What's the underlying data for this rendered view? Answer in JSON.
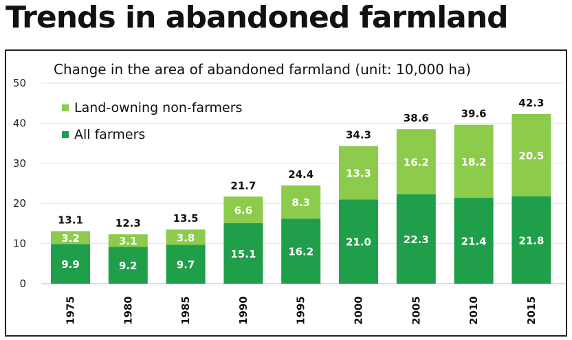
{
  "heading": "Trends in abandoned farmland",
  "chart_data": {
    "type": "bar",
    "stacked": true,
    "title": "Change in the area of abandoned farmland (unit: 10,000 ha)",
    "categories": [
      "1975",
      "1980",
      "1985",
      "1990",
      "1995",
      "2000",
      "2005",
      "2010",
      "2015"
    ],
    "series": [
      {
        "name": "All farmers",
        "values": [
          9.9,
          9.2,
          9.7,
          15.1,
          16.2,
          21.0,
          22.3,
          21.4,
          21.8
        ],
        "color": "#1f9f4a"
      },
      {
        "name": "Land-owning non-farmers",
        "values": [
          3.2,
          3.1,
          3.8,
          6.6,
          8.3,
          13.3,
          16.2,
          18.2,
          20.5
        ],
        "color": "#8ccb4b"
      }
    ],
    "totals": [
      13.1,
      12.3,
      13.5,
      21.7,
      24.4,
      34.3,
      38.6,
      39.6,
      42.3
    ],
    "legend_order": [
      "Land-owning non-farmers",
      "All farmers"
    ],
    "ylim": [
      0,
      50
    ],
    "yticks": [
      0,
      10,
      20,
      30,
      40,
      50
    ],
    "grid": true,
    "legend_position": "top-left"
  }
}
